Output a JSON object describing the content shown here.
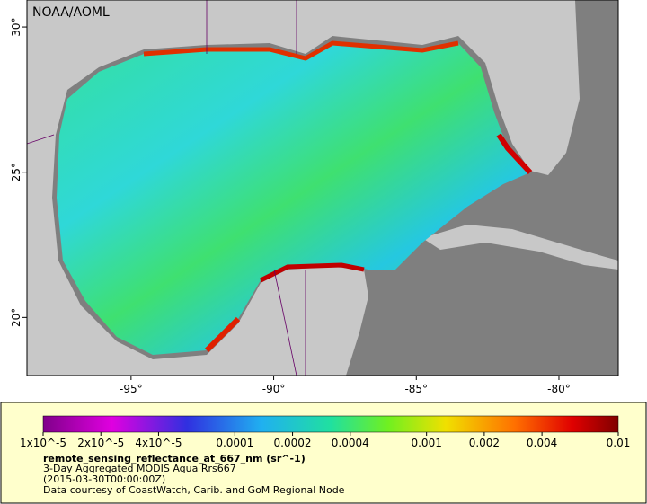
{
  "map": {
    "credit": "NOAA/AOML",
    "xlim": [
      -98.65,
      -77.92
    ],
    "ylim": [
      18.0,
      30.93
    ],
    "lon_ticks": [
      {
        "value": -95,
        "label": "-95°"
      },
      {
        "value": -90,
        "label": "-90°"
      },
      {
        "value": -85,
        "label": "-85°"
      },
      {
        "value": -80,
        "label": "-80°"
      }
    ],
    "lat_ticks": [
      {
        "value": 30,
        "label": "30°"
      },
      {
        "value": 25,
        "label": "25°"
      },
      {
        "value": 20,
        "label": "20°"
      }
    ]
  },
  "colorbar": {
    "lim": [
      1e-05,
      0.01
    ],
    "log": true,
    "ticks": [
      {
        "value": 1e-05,
        "label": "1x10^-5"
      },
      {
        "value": 2e-05,
        "label": "2x10^-5"
      },
      {
        "value": 4e-05,
        "label": "4x10^-5"
      },
      0.0001,
      0.0002,
      0.0004,
      0.001,
      0.002,
      0.004,
      0.01
    ]
  },
  "legend": {
    "variable": "remote_sensing_reflectance_at_667_nm (sr^-1)",
    "product": "3-Day Aggregated MODIS Aqua Rrs667",
    "time": "(2015-03-30T00:00:00Z)",
    "credit": "Data courtesy of CoastWatch, Carib. and GoM Regional Node"
  }
}
